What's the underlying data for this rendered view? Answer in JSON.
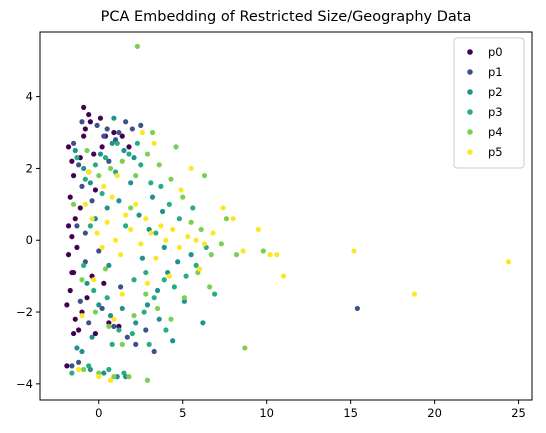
{
  "chart_data": {
    "type": "scatter",
    "title": "PCA Embedding of Restricted Size/Geography Data",
    "xlabel": "",
    "ylabel": "",
    "xlim": [
      -3.5,
      25.8
    ],
    "ylim": [
      -4.45,
      5.8
    ],
    "x_ticks": [
      0,
      5,
      10,
      15,
      20,
      25
    ],
    "y_ticks": [
      -4,
      -2,
      0,
      2,
      4
    ],
    "grid": false,
    "legend_position": "top-right",
    "series": [
      {
        "name": "p0",
        "color": "#440154",
        "points": [
          [
            -1.8,
            2.6
          ],
          [
            -1.6,
            2.2
          ],
          [
            -1.5,
            1.8
          ],
          [
            -1.7,
            1.2
          ],
          [
            -1.4,
            0.6
          ],
          [
            -1.6,
            0.1
          ],
          [
            -1.8,
            -0.4
          ],
          [
            -1.5,
            -0.9
          ],
          [
            -1.7,
            -1.4
          ],
          [
            -1.9,
            -1.8
          ],
          [
            -1.4,
            -2.2
          ],
          [
            -1.2,
            -2.5
          ],
          [
            -0.9,
            2.9
          ],
          [
            -0.5,
            3.3
          ],
          [
            -0.6,
            3.5
          ],
          [
            -0.8,
            3.1
          ],
          [
            -1.0,
            -2.0
          ],
          [
            -0.7,
            -1.6
          ],
          [
            -0.3,
            2.4
          ],
          [
            -0.2,
            1.4
          ],
          [
            0.4,
            2.9
          ],
          [
            0.9,
            3.0
          ],
          [
            0.2,
            2.6
          ],
          [
            -0.2,
            -2.6
          ],
          [
            0.6,
            -2.3
          ],
          [
            -1.9,
            -3.5
          ],
          [
            -1.1,
            0.9
          ],
          [
            -1.3,
            -0.2
          ],
          [
            -0.6,
            1.9
          ],
          [
            0.1,
            3.4
          ],
          [
            1.4,
            2.9
          ],
          [
            1.2,
            -2.4
          ],
          [
            -1.6,
            -0.9
          ],
          [
            -1.1,
            2.3
          ],
          [
            0.3,
            -1.2
          ],
          [
            1.8,
            2.6
          ],
          [
            -0.9,
            3.7
          ],
          [
            -1.5,
            -2.6
          ],
          [
            -0.4,
            -1.0
          ],
          [
            -1.8,
            0.4
          ]
        ]
      },
      {
        "name": "p1",
        "color": "#3b528b",
        "points": [
          [
            -1.5,
            2.7
          ],
          [
            -1.2,
            2.1
          ],
          [
            -1.0,
            1.5
          ],
          [
            -1.3,
            0.4
          ],
          [
            -0.8,
            -0.6
          ],
          [
            -1.1,
            -1.7
          ],
          [
            -0.6,
            -2.3
          ],
          [
            -0.1,
            3.2
          ],
          [
            0.5,
            3.1
          ],
          [
            1.0,
            2.8
          ],
          [
            1.6,
            3.3
          ],
          [
            2.0,
            3.1
          ],
          [
            -0.4,
            1.1
          ],
          [
            0.2,
            -1.9
          ],
          [
            0.9,
            -2.4
          ],
          [
            1.7,
            -2.7
          ],
          [
            -1.6,
            -3.5
          ],
          [
            -1.2,
            -3.4
          ],
          [
            -0.8,
            0.2
          ],
          [
            0.6,
            2.2
          ],
          [
            1.3,
            -1.3
          ],
          [
            2.2,
            -2.9
          ],
          [
            3.3,
            -3.1
          ],
          [
            15.4,
            -1.9
          ],
          [
            -1.0,
            3.3
          ],
          [
            0.0,
            -0.3
          ],
          [
            2.5,
            3.2
          ],
          [
            1.2,
            3.0
          ],
          [
            2.8,
            -2.5
          ],
          [
            0.3,
            2.9
          ]
        ]
      },
      {
        "name": "p2",
        "color": "#21918c",
        "points": [
          [
            -1.4,
            2.5
          ],
          [
            -0.9,
            2.0
          ],
          [
            -0.5,
            1.6
          ],
          [
            0.1,
            2.4
          ],
          [
            0.8,
            2.7
          ],
          [
            1.5,
            2.5
          ],
          [
            2.1,
            2.3
          ],
          [
            -0.7,
            -1.2
          ],
          [
            0.0,
            -1.8
          ],
          [
            0.7,
            -2.1
          ],
          [
            1.4,
            -1.9
          ],
          [
            2.2,
            -2.3
          ],
          [
            2.9,
            -1.8
          ],
          [
            3.5,
            -1.4
          ],
          [
            4.1,
            -0.9
          ],
          [
            4.7,
            -0.6
          ],
          [
            3.2,
            1.2
          ],
          [
            3.8,
            0.8
          ],
          [
            -1.3,
            -3.0
          ],
          [
            -1.0,
            -3.1
          ],
          [
            -0.5,
            -3.6
          ],
          [
            0.3,
            -3.7
          ],
          [
            1.1,
            -3.8
          ],
          [
            1.6,
            -3.8
          ],
          [
            -0.2,
            0.6
          ],
          [
            0.5,
            0.9
          ],
          [
            2.6,
            -0.5
          ],
          [
            3.0,
            0.3
          ],
          [
            1.9,
            1.6
          ],
          [
            5.1,
            -1.7
          ],
          [
            4.4,
            -2.8
          ],
          [
            3.6,
            -2.2
          ],
          [
            -0.4,
            -2.7
          ],
          [
            0.9,
            3.4
          ],
          [
            5.5,
            -0.4
          ],
          [
            6.2,
            -2.3
          ],
          [
            1.2,
            1.1
          ],
          [
            2.4,
            0.7
          ],
          [
            3.9,
            -0.2
          ],
          [
            0.6,
            -0.7
          ]
        ]
      },
      {
        "name": "p3",
        "color": "#27ad81",
        "points": [
          [
            -1.3,
            2.3
          ],
          [
            -0.8,
            1.7
          ],
          [
            -0.2,
            2.1
          ],
          [
            0.4,
            2.3
          ],
          [
            1.0,
            1.9
          ],
          [
            1.8,
            2.4
          ],
          [
            2.5,
            2.1
          ],
          [
            3.1,
            1.6
          ],
          [
            -0.9,
            -0.7
          ],
          [
            -0.3,
            -1.4
          ],
          [
            0.5,
            -1.6
          ],
          [
            1.2,
            -2.5
          ],
          [
            2.0,
            -2.6
          ],
          [
            2.7,
            -2.0
          ],
          [
            3.3,
            -1.6
          ],
          [
            3.9,
            -1.1
          ],
          [
            4.5,
            -1.3
          ],
          [
            5.2,
            -1.0
          ],
          [
            5.8,
            -0.7
          ],
          [
            6.4,
            -0.2
          ],
          [
            4.8,
            0.6
          ],
          [
            4.2,
            1.0
          ],
          [
            3.7,
            1.5
          ],
          [
            -1.6,
            -3.7
          ],
          [
            -0.6,
            -3.5
          ],
          [
            0.6,
            -3.6
          ],
          [
            1.5,
            -3.7
          ],
          [
            0.2,
            1.3
          ],
          [
            1.6,
            0.4
          ],
          [
            2.8,
            -0.9
          ],
          [
            3.4,
            0.2
          ],
          [
            4.0,
            -2.5
          ],
          [
            2.3,
            2.7
          ],
          [
            0.8,
            -2.9
          ],
          [
            6.9,
            -1.5
          ],
          [
            5.6,
            0.9
          ],
          [
            1.1,
            2.7
          ],
          [
            -0.5,
            0.4
          ],
          [
            2.1,
            -1.1
          ],
          [
            3.0,
            -2.9
          ]
        ]
      },
      {
        "name": "p4",
        "color": "#7ad151",
        "points": [
          [
            2.3,
            5.4
          ],
          [
            -1.5,
            1.0
          ],
          [
            -0.7,
            2.5
          ],
          [
            0.0,
            1.8
          ],
          [
            0.7,
            2.0
          ],
          [
            1.4,
            2.2
          ],
          [
            2.2,
            1.8
          ],
          [
            2.9,
            2.4
          ],
          [
            3.6,
            2.1
          ],
          [
            4.3,
            1.7
          ],
          [
            5.0,
            1.2
          ],
          [
            5.5,
            0.5
          ],
          [
            6.1,
            0.3
          ],
          [
            6.7,
            -0.4
          ],
          [
            7.3,
            -0.1
          ],
          [
            8.2,
            -0.4
          ],
          [
            9.8,
            -0.3
          ],
          [
            -1.0,
            -1.1
          ],
          [
            -0.2,
            -2.0
          ],
          [
            0.6,
            -2.4
          ],
          [
            1.4,
            -2.9
          ],
          [
            2.1,
            -2.1
          ],
          [
            2.8,
            -1.5
          ],
          [
            3.5,
            -1.9
          ],
          [
            4.3,
            -2.2
          ],
          [
            5.1,
            -1.6
          ],
          [
            5.9,
            -0.9
          ],
          [
            6.6,
            -1.3
          ],
          [
            8.7,
            -3.0
          ],
          [
            -0.9,
            -3.6
          ],
          [
            0.0,
            -3.7
          ],
          [
            0.9,
            -3.8
          ],
          [
            1.8,
            -3.8
          ],
          [
            2.9,
            -3.9
          ],
          [
            6.3,
            1.8
          ],
          [
            7.6,
            0.6
          ],
          [
            4.6,
            2.6
          ],
          [
            3.2,
            3.0
          ],
          [
            0.4,
            -0.8
          ],
          [
            1.9,
            0.9
          ]
        ]
      },
      {
        "name": "p5",
        "color": "#fde725",
        "points": [
          [
            -0.8,
            1.0
          ],
          [
            -0.4,
            0.6
          ],
          [
            -0.1,
            0.2
          ],
          [
            0.2,
            -0.2
          ],
          [
            0.5,
            0.5
          ],
          [
            0.8,
            1.2
          ],
          [
            1.0,
            0.0
          ],
          [
            1.3,
            -0.4
          ],
          [
            1.6,
            0.7
          ],
          [
            1.9,
            0.3
          ],
          [
            2.2,
            1.0
          ],
          [
            2.5,
            -0.1
          ],
          [
            2.8,
            0.6
          ],
          [
            3.1,
            0.2
          ],
          [
            3.4,
            -0.5
          ],
          [
            3.7,
            0.4
          ],
          [
            4.0,
            0.0
          ],
          [
            4.4,
            0.3
          ],
          [
            4.8,
            -0.2
          ],
          [
            5.3,
            0.1
          ],
          [
            5.8,
            0.0
          ],
          [
            6.3,
            -0.1
          ],
          [
            6.8,
            0.2
          ],
          [
            7.4,
            0.9
          ],
          [
            8.0,
            0.6
          ],
          [
            8.6,
            -0.3
          ],
          [
            9.5,
            0.3
          ],
          [
            10.2,
            -0.4
          ],
          [
            10.6,
            -0.4
          ],
          [
            11.0,
            -1.0
          ],
          [
            15.2,
            -0.3
          ],
          [
            18.8,
            -1.5
          ],
          [
            24.4,
            -0.6
          ],
          [
            -0.6,
            1.9
          ],
          [
            0.3,
            1.5
          ],
          [
            1.1,
            1.8
          ],
          [
            2.6,
            3.0
          ],
          [
            3.3,
            2.7
          ],
          [
            5.5,
            2.0
          ],
          [
            -0.3,
            -1.1
          ],
          [
            1.4,
            -1.5
          ],
          [
            2.9,
            -1.2
          ],
          [
            4.2,
            -1.0
          ],
          [
            6.0,
            -0.8
          ],
          [
            -1.0,
            -2.1
          ],
          [
            0.9,
            -2.2
          ],
          [
            -1.2,
            -3.6
          ],
          [
            0.0,
            -3.8
          ],
          [
            0.7,
            -3.9
          ],
          [
            4.9,
            1.4
          ]
        ]
      }
    ]
  }
}
